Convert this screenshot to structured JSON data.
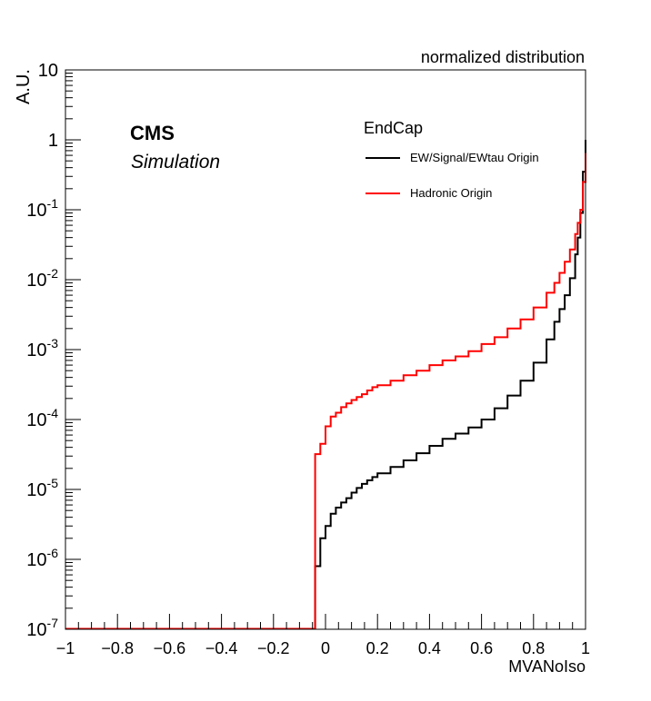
{
  "chart_data": {
    "type": "line",
    "title": "normalized distribution",
    "xlabel": "MVANoIso",
    "ylabel": "A.U.",
    "xlim": [
      -1,
      1
    ],
    "ylim": [
      1e-07,
      10
    ],
    "yscale": "log",
    "x_ticks": [
      "−1",
      "−0.8",
      "−0.6",
      "−0.4",
      "−0.2",
      "0",
      "0.2",
      "0.4",
      "0.6",
      "0.8",
      "1"
    ],
    "y_ticks": [
      {
        "base": "10",
        "exp": "-7"
      },
      {
        "base": "10",
        "exp": "-6"
      },
      {
        "base": "10",
        "exp": "-5"
      },
      {
        "base": "10",
        "exp": "-4"
      },
      {
        "base": "10",
        "exp": "-3"
      },
      {
        "base": "10",
        "exp": "-2"
      },
      {
        "base": "10",
        "exp": "-1"
      },
      {
        "base": "1",
        "exp": ""
      },
      {
        "base": "10",
        "exp": ""
      }
    ],
    "grid": false,
    "legend_position": "top-right",
    "legend_header": "EndCap",
    "labels": {
      "experiment": "CMS",
      "sub": "Simulation"
    },
    "series": [
      {
        "name": "EW/Signal/EWtau Origin",
        "color": "#000000",
        "x": [
          -0.04,
          -0.02,
          0.0,
          0.02,
          0.04,
          0.06,
          0.08,
          0.1,
          0.12,
          0.14,
          0.16,
          0.18,
          0.2,
          0.25,
          0.3,
          0.35,
          0.4,
          0.45,
          0.5,
          0.55,
          0.6,
          0.65,
          0.7,
          0.75,
          0.8,
          0.85,
          0.88,
          0.9,
          0.92,
          0.94,
          0.96,
          0.97,
          0.98,
          0.99,
          1.0
        ],
        "y": [
          8e-07,
          2e-06,
          3e-06,
          4.5e-06,
          5.5e-06,
          6.5e-06,
          7.5e-06,
          9e-06,
          1.05e-05,
          1.2e-05,
          1.35e-05,
          1.5e-05,
          1.7e-05,
          2.1e-05,
          2.6e-05,
          3.3e-05,
          4.2e-05,
          5.3e-05,
          6.3e-05,
          7.7e-05,
          0.0001,
          0.000145,
          0.00022,
          0.00036,
          0.00065,
          0.0014,
          0.0025,
          0.0038,
          0.006,
          0.0105,
          0.023,
          0.04,
          0.09,
          0.35,
          1.0
        ]
      },
      {
        "name": "Hadronic Origin",
        "color": "#ff0000",
        "x": [
          -0.04,
          -0.02,
          0.0,
          0.02,
          0.04,
          0.06,
          0.08,
          0.1,
          0.12,
          0.14,
          0.16,
          0.18,
          0.2,
          0.25,
          0.3,
          0.35,
          0.4,
          0.45,
          0.5,
          0.55,
          0.6,
          0.65,
          0.7,
          0.75,
          0.8,
          0.85,
          0.88,
          0.9,
          0.92,
          0.94,
          0.96,
          0.97,
          0.98,
          0.99,
          1.0
        ],
        "y": [
          3.2e-05,
          4.5e-05,
          8e-05,
          0.00011,
          0.000125,
          0.00015,
          0.00017,
          0.00019,
          0.00021,
          0.00023,
          0.00026,
          0.00029,
          0.00031,
          0.00036,
          0.00043,
          0.0005,
          0.0006,
          0.0007,
          0.0008,
          0.00095,
          0.0012,
          0.0015,
          0.002,
          0.0027,
          0.004,
          0.0065,
          0.009,
          0.0125,
          0.018,
          0.027,
          0.045,
          0.065,
          0.1,
          0.25,
          0.65
        ]
      }
    ]
  }
}
